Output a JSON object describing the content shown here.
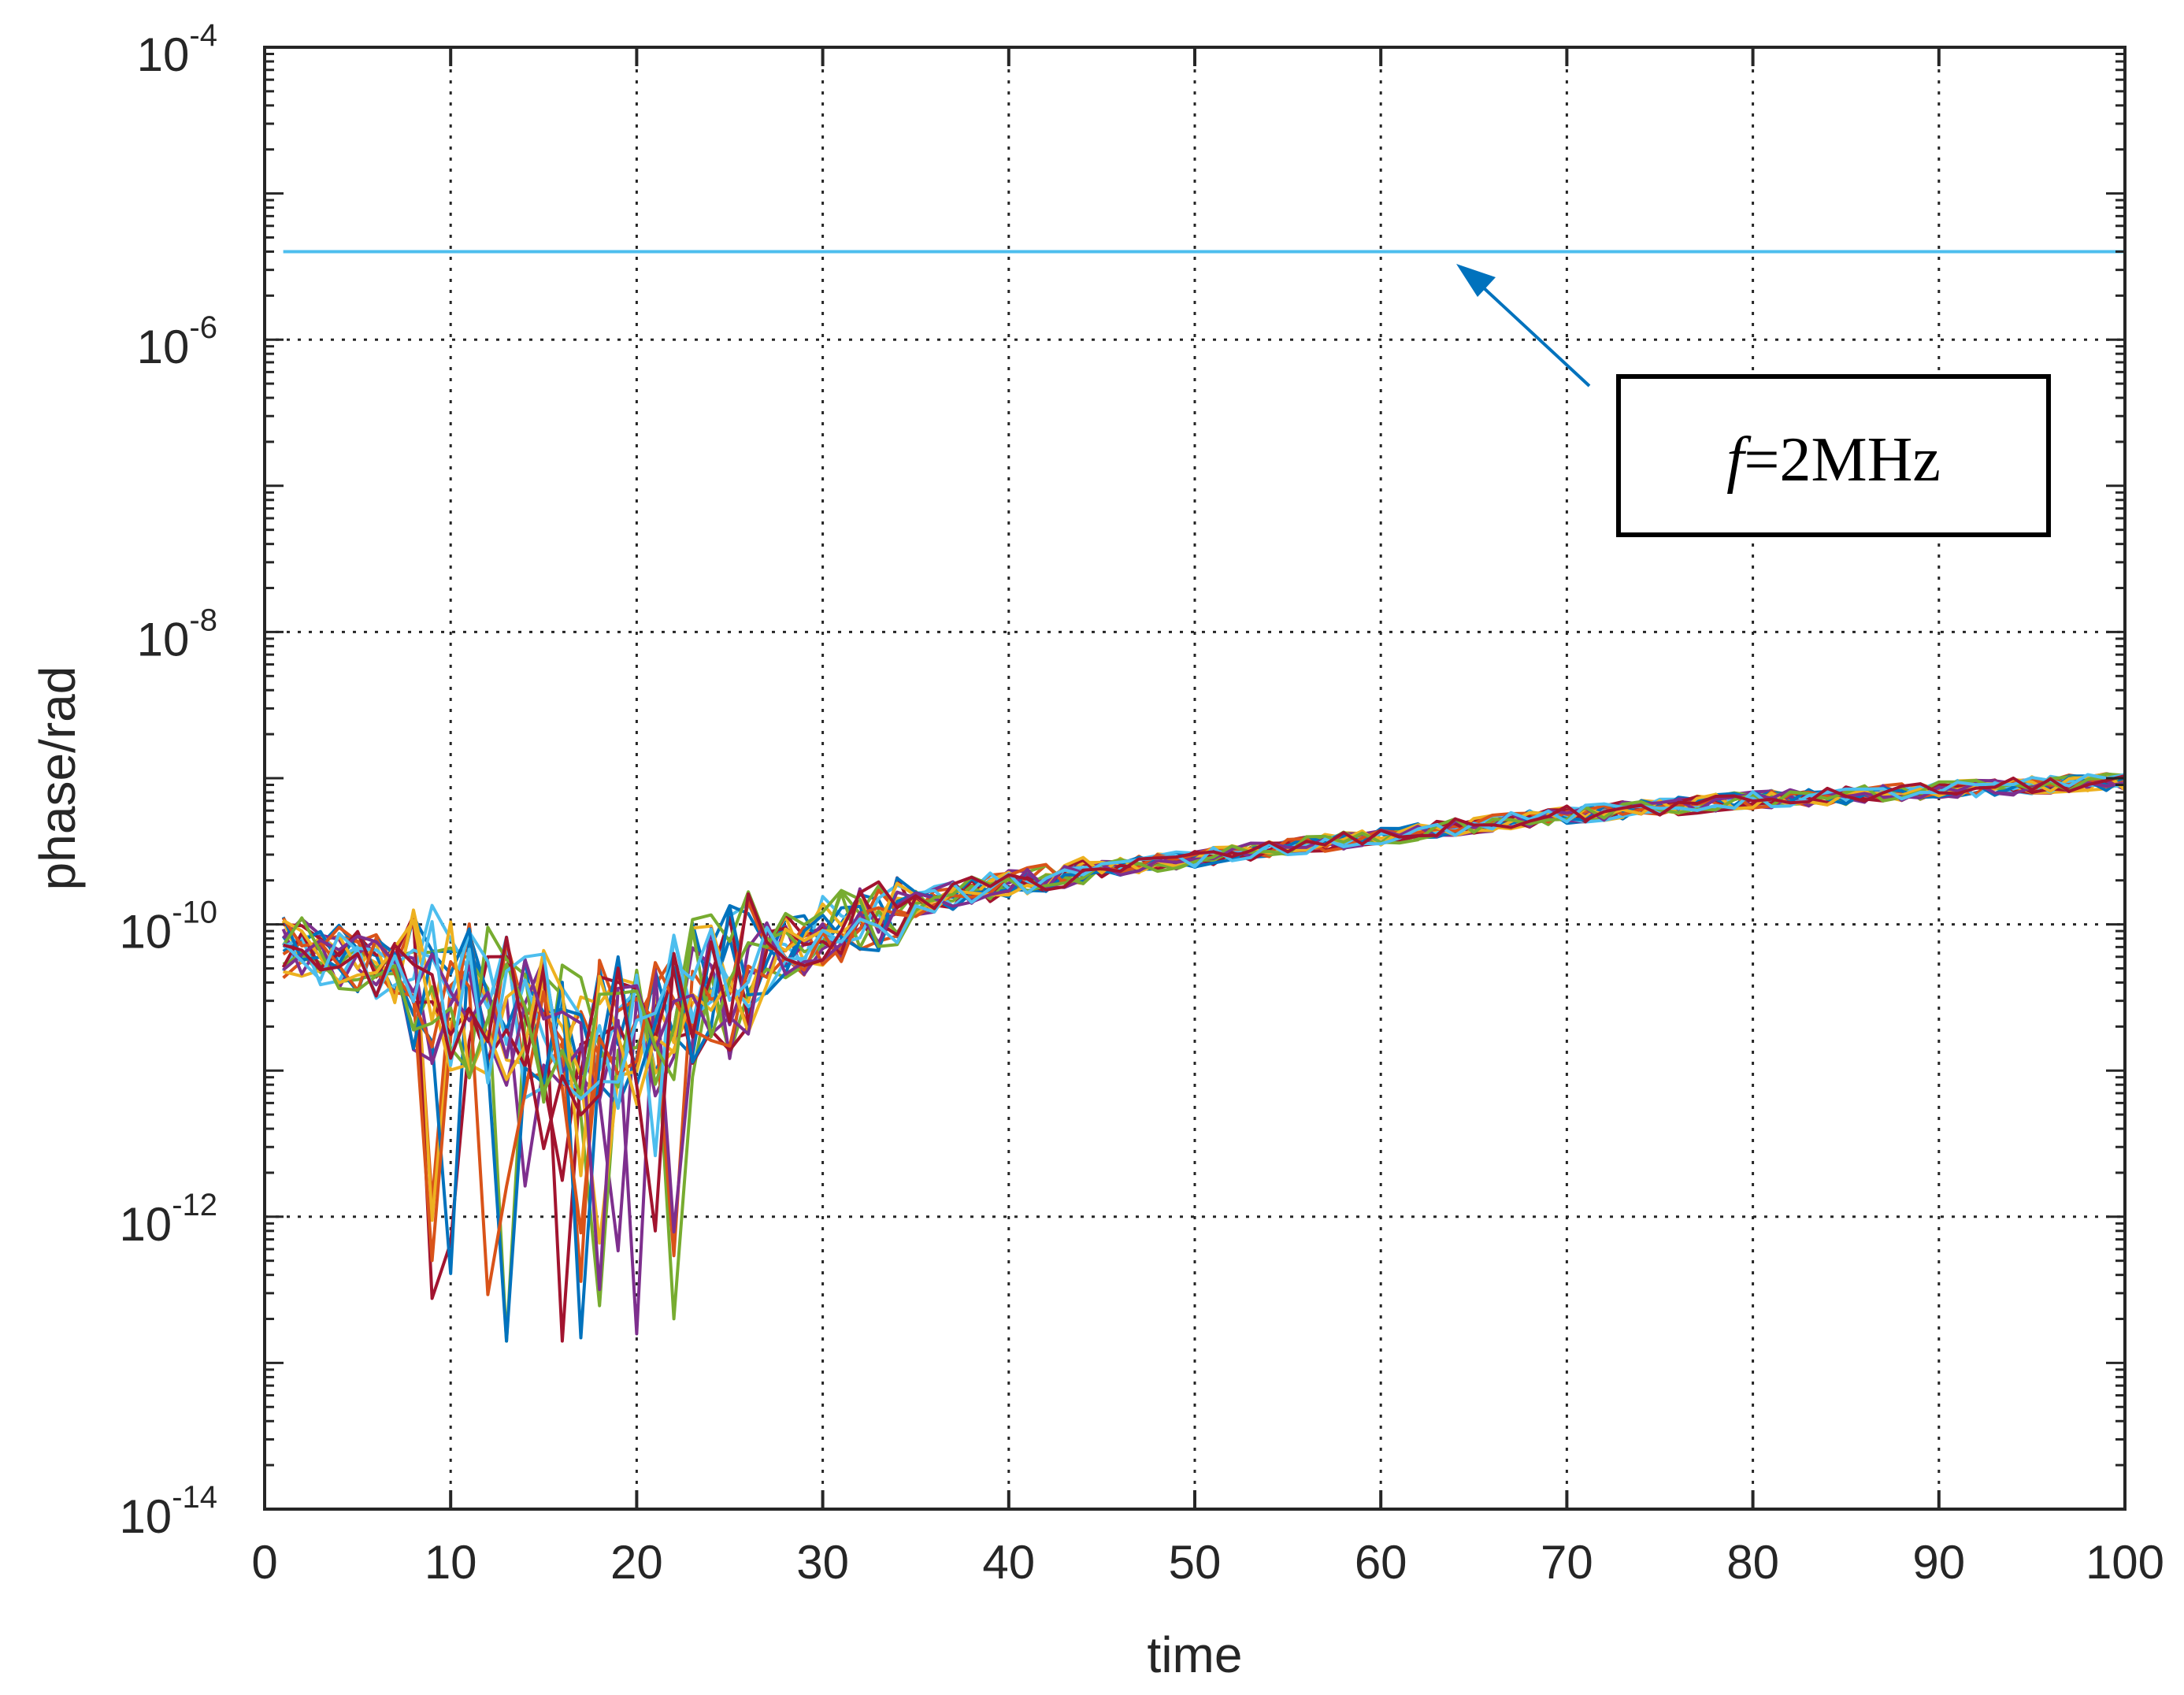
{
  "chart_data": {
    "type": "line",
    "xlabel": "time",
    "ylabel": "phase/rad",
    "xlim": [
      0,
      100
    ],
    "ylim_log10": [
      -14,
      -4
    ],
    "yscale": "log",
    "grid": true,
    "x_ticks": [
      0,
      10,
      20,
      30,
      40,
      50,
      60,
      70,
      80,
      90,
      100
    ],
    "x_tick_labels": [
      "0",
      "10",
      "20",
      "30",
      "40",
      "50",
      "60",
      "70",
      "80",
      "90",
      "100"
    ],
    "y_ticks_log10": [
      -14,
      -12,
      -10,
      -8,
      -6,
      -4
    ],
    "y_tick_base": "10",
    "y_tick_exponents": [
      "-14",
      "-12",
      "-10",
      "-8",
      "-6",
      "-4"
    ],
    "reference_line": {
      "name": "f=2MHz",
      "value": 4e-06,
      "color": "#4DBEEE"
    },
    "annotation": {
      "italic_part": "f",
      "text_part": "=2MHz",
      "arrow_color": "#0072BD"
    },
    "series_colors": [
      "#0072BD",
      "#D95319",
      "#EDB120",
      "#7E2F8E",
      "#77AC30",
      "#4DBEEE",
      "#A2142F"
    ],
    "series_count": 21,
    "trend": {
      "x": [
        1,
        5,
        10,
        14,
        17,
        20,
        24,
        28,
        30,
        35,
        40,
        45,
        50,
        55,
        60,
        65,
        70,
        75,
        80,
        85,
        90,
        95,
        100
      ],
      "log10_y": [
        -10.15,
        -10.25,
        -10.45,
        -10.65,
        -10.8,
        -10.7,
        -10.45,
        -10.15,
        -10.05,
        -9.85,
        -9.72,
        -9.62,
        -9.55,
        -9.47,
        -9.4,
        -9.32,
        -9.25,
        -9.2,
        -9.15,
        -9.12,
        -9.08,
        -9.05,
        -9.02
      ]
    }
  }
}
